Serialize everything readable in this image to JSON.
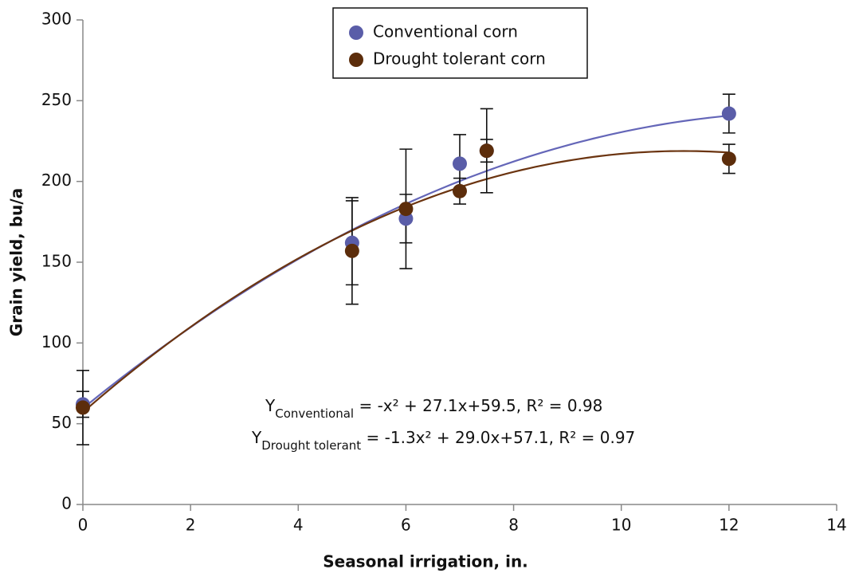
{
  "chart_data": {
    "type": "scatter",
    "x_label": "Seasonal irrigation, in.",
    "y_label": "Grain yield, bu/a",
    "xlim": [
      0,
      14
    ],
    "xticks": [
      0,
      2,
      4,
      6,
      8,
      10,
      12,
      14
    ],
    "ylim": [
      0,
      300
    ],
    "yticks": [
      0,
      50,
      100,
      150,
      200,
      250,
      300
    ],
    "legend": "top-center",
    "series": [
      {
        "name": "Conventional corn",
        "color": "#5a5da8",
        "line_color": "#6466b8",
        "x": [
          0,
          5,
          6,
          7,
          7.5,
          12
        ],
        "values": [
          62,
          162,
          177,
          211,
          219,
          242
        ],
        "errors": [
          8,
          26,
          15,
          18,
          7,
          12
        ],
        "trend": [
          -1,
          27.1,
          59.5
        ]
      },
      {
        "name": "Drought tolerant corn",
        "color": "#5c2d0b",
        "line_color": "#6b3410",
        "x": [
          0,
          5,
          6,
          7,
          7.5,
          12
        ],
        "values": [
          60,
          157,
          183,
          194,
          219,
          214
        ],
        "errors": [
          23,
          33,
          37,
          8,
          26,
          9
        ],
        "trend": [
          -1.3,
          29.0,
          57.1
        ]
      }
    ],
    "annotations": [
      {
        "main": "Y",
        "sub": "Conventional",
        "rest": " = -x² + 27.1x+59.5, R² = 0.98"
      },
      {
        "main": "Y",
        "sub": "Drought tolerant",
        "rest": " = -1.3x² + 29.0x+57.1, R² = 0.97"
      }
    ]
  }
}
